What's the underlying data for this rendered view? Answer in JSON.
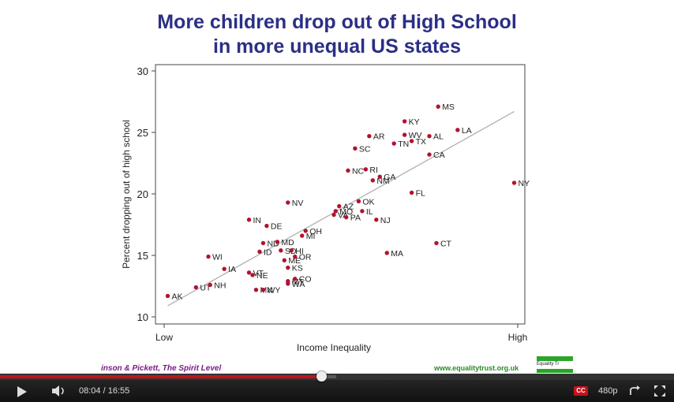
{
  "slide": {
    "title_line1": "More children drop out of High School",
    "title_line2": "in more unequal US states",
    "footer_left": "inson & Pickett, The Spirit Level",
    "footer_right": "www.equalitytrust.org.uk",
    "logo_text": "Equality Tr"
  },
  "chart_data": {
    "type": "scatter",
    "xlabel": "Income Inequality",
    "ylabel": "Percent dropping out of high school",
    "x_tick_labels": [
      "Low",
      "High"
    ],
    "ylim": [
      10,
      30
    ],
    "y_ticks": [
      10,
      15,
      20,
      25,
      30
    ],
    "xlim": [
      0,
      100
    ],
    "grid": false,
    "trend_line": {
      "x": [
        1,
        99
      ],
      "y": [
        10.9,
        26.7
      ]
    },
    "points": [
      {
        "label": "AK",
        "x": 1,
        "y": 11.7
      },
      {
        "label": "UT",
        "x": 9,
        "y": 12.4
      },
      {
        "label": "NH",
        "x": 13,
        "y": 12.6
      },
      {
        "label": "WI",
        "x": 12.5,
        "y": 14.9
      },
      {
        "label": "IA",
        "x": 17,
        "y": 13.9
      },
      {
        "label": "IN",
        "x": 24,
        "y": 17.9
      },
      {
        "label": "DE",
        "x": 29,
        "y": 17.4
      },
      {
        "label": "NV",
        "x": 35,
        "y": 19.3
      },
      {
        "label": "ND",
        "x": 28,
        "y": 16.0
      },
      {
        "label": "ID",
        "x": 27,
        "y": 15.3
      },
      {
        "label": "MD",
        "x": 32,
        "y": 16.1
      },
      {
        "label": "OH",
        "x": 40,
        "y": 17.0
      },
      {
        "label": "SD",
        "x": 33,
        "y": 15.4
      },
      {
        "label": "HI",
        "x": 36,
        "y": 15.4
      },
      {
        "label": "MI",
        "x": 39,
        "y": 16.6
      },
      {
        "label": "VT",
        "x": 24,
        "y": 13.6
      },
      {
        "label": "NE",
        "x": 25,
        "y": 13.4
      },
      {
        "label": "ME",
        "x": 34,
        "y": 14.6
      },
      {
        "label": "OR",
        "x": 37,
        "y": 14.9
      },
      {
        "label": "KS",
        "x": 35,
        "y": 14.0
      },
      {
        "label": "MN",
        "x": 26,
        "y": 12.2
      },
      {
        "label": "WY",
        "x": 28,
        "y": 12.2
      },
      {
        "label": "MT",
        "x": 35,
        "y": 12.9
      },
      {
        "label": "CO",
        "x": 37,
        "y": 13.1
      },
      {
        "label": "WA",
        "x": 35,
        "y": 12.7
      },
      {
        "label": "MO",
        "x": 48.5,
        "y": 18.6
      },
      {
        "label": "AZ",
        "x": 49.5,
        "y": 19.0
      },
      {
        "label": "VA",
        "x": 48,
        "y": 18.3
      },
      {
        "label": "PA",
        "x": 51.5,
        "y": 18.1
      },
      {
        "label": "OK",
        "x": 55,
        "y": 19.4
      },
      {
        "label": "IL",
        "x": 56,
        "y": 18.6
      },
      {
        "label": "NJ",
        "x": 60,
        "y": 17.9
      },
      {
        "label": "SC",
        "x": 54,
        "y": 23.7
      },
      {
        "label": "NC",
        "x": 52,
        "y": 21.9
      },
      {
        "label": "RI",
        "x": 57,
        "y": 22.0
      },
      {
        "label": "NM",
        "x": 59,
        "y": 21.1
      },
      {
        "label": "GA",
        "x": 61,
        "y": 21.4
      },
      {
        "label": "AR",
        "x": 58,
        "y": 24.7
      },
      {
        "label": "KY",
        "x": 68,
        "y": 25.9
      },
      {
        "label": "WV",
        "x": 68,
        "y": 24.8
      },
      {
        "label": "TN",
        "x": 65,
        "y": 24.1
      },
      {
        "label": "TX",
        "x": 70,
        "y": 24.3
      },
      {
        "label": "AL",
        "x": 75,
        "y": 24.7
      },
      {
        "label": "CA",
        "x": 75,
        "y": 23.2
      },
      {
        "label": "MS",
        "x": 77.5,
        "y": 27.1
      },
      {
        "label": "LA",
        "x": 83,
        "y": 25.2
      },
      {
        "label": "FL",
        "x": 70,
        "y": 20.1
      },
      {
        "label": "NY",
        "x": 99,
        "y": 20.9
      },
      {
        "label": "CT",
        "x": 77,
        "y": 16.0
      },
      {
        "label": "MA",
        "x": 63,
        "y": 15.2
      }
    ]
  },
  "player": {
    "time_current": "08:04",
    "time_separator": " / ",
    "time_total": "16:55",
    "cc_label": "CC",
    "quality": "480p",
    "progress_played": 0.478
  },
  "colors": {
    "title": "#2b2f86",
    "point": "#b3122f",
    "trend": "#b0b0b0",
    "progress": "#c4131b"
  }
}
